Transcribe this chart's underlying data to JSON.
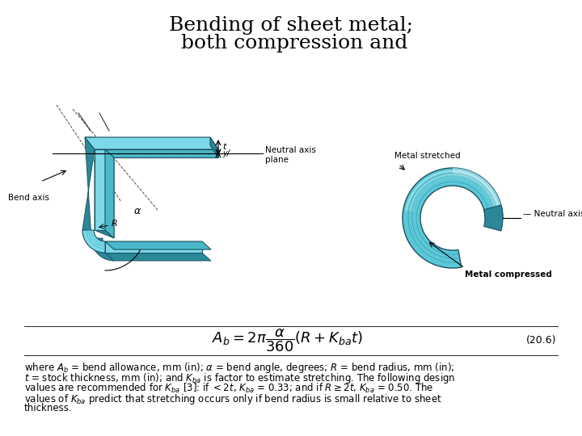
{
  "title_line1": "Bending of sheet metal;",
  "title_line2": " both compression and",
  "bg_color": "#ffffff",
  "formula": "$A_b = 2\\pi \\dfrac{\\alpha}{360}(R + K_{ba}t)$",
  "formula_ref": "(20.6)",
  "title_fontsize": 18,
  "formula_fontsize": 13,
  "body_fontsize": 8.5,
  "teal_light": "#7dd8e8",
  "teal_mid": "#4ab8c8",
  "teal_dark": "#2a8898",
  "teal_very_dark": "#1a6878",
  "edge_color": "#1a5060"
}
